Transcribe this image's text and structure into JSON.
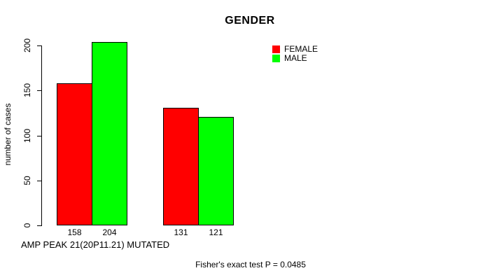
{
  "chart_data": {
    "type": "bar",
    "title": "GENDER",
    "ylabel": "number of cases",
    "xlabel": "AMP PEAK 21(20P11.21) MUTATED",
    "annotation": "Fisher's exact test P = 0.0485",
    "categories": [
      "",
      ""
    ],
    "series": [
      {
        "name": "FEMALE",
        "color": "#ff0000",
        "values": [
          158,
          131
        ]
      },
      {
        "name": "MALE",
        "color": "#00ff00",
        "values": [
          204,
          121
        ]
      }
    ],
    "yticks": [
      0,
      50,
      100,
      150,
      200
    ],
    "ylim": [
      0,
      200
    ],
    "grid": false,
    "legend_position": "top-right",
    "bar_border_color": "#000000",
    "axis_color": "#000000",
    "background_color": "#ffffff",
    "value_labels_shown": true
  }
}
